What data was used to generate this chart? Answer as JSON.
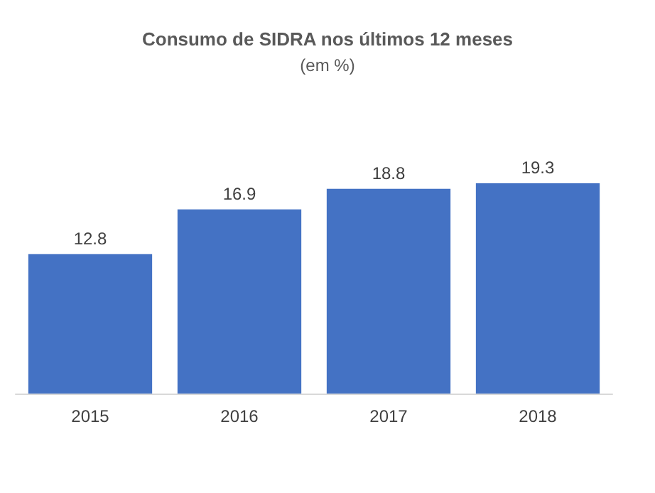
{
  "chart_data": {
    "type": "bar",
    "title": "Consumo de SIDRA nos últimos 12 meses",
    "subtitle": "(em %)",
    "categories": [
      "2015",
      "2016",
      "2017",
      "2018"
    ],
    "values": [
      12.8,
      16.9,
      18.8,
      19.3
    ],
    "color": "#4472c4",
    "data_labels": true
  }
}
